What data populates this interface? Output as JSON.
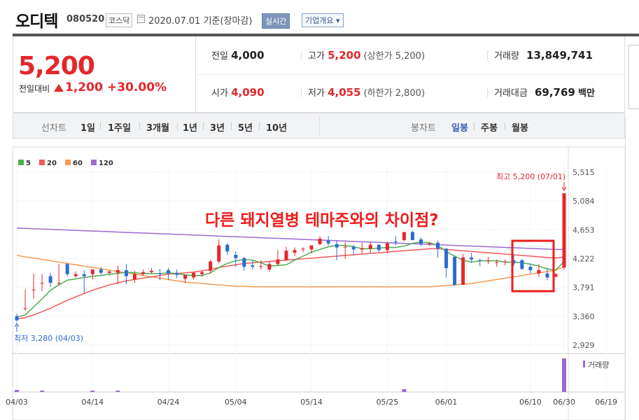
{
  "header": {
    "stock_name": "오디텍",
    "stock_code": "080520",
    "market": "코스닥",
    "date_text": "2020.07.01 기준(장마감)",
    "realtime_button": "실시간",
    "company_overview_button": "기업개요 ▾"
  },
  "summary": {
    "current_price": "5,200",
    "change_label": "전일대비",
    "change_value": "1,200",
    "change_percent": "+30.00%",
    "prev_close_label": "전일",
    "prev_close": "4,000",
    "high_label": "고가",
    "high": "5,200",
    "upper_limit": "(상한가 5,200)",
    "volume_label": "거래량",
    "volume": "13,849,741",
    "open_label": "시가",
    "open": "4,090",
    "low_label": "저가",
    "low": "4,055",
    "lower_limit": "(하한가 2,800)",
    "trade_value_label": "거래대금",
    "trade_value": "69,769",
    "trade_value_unit": "백만"
  },
  "toolbar": {
    "line_chart_label": "선차트",
    "line_periods": [
      "1일",
      "1주일",
      "3개월",
      "1년",
      "3년",
      "5년",
      "10년"
    ],
    "candle_chart_label": "봉차트",
    "candle_periods": [
      "일봉",
      "주봉",
      "월봉"
    ],
    "selected_candle_period": "일봉"
  },
  "colors": {
    "up": "#e4272b",
    "down": "#2c6ad4",
    "ma5": "#4caf50",
    "ma20": "#f0595a",
    "ma60": "#f59a4e",
    "ma120": "#9c6ad2",
    "annotation": "#ee1c1c"
  },
  "chart_data": {
    "type": "candlestick",
    "legend": [
      "5",
      "20",
      "60",
      "120"
    ],
    "y_ticks": [
      "5,515",
      "5,084",
      "4,653",
      "4,222",
      "3,791",
      "3,360",
      "2,929"
    ],
    "ylim": [
      2929,
      5515
    ],
    "x_ticks": [
      "04/03",
      "04/14",
      "04/24",
      "05/04",
      "05/14",
      "05/25",
      "06/01",
      "06/10",
      "06/19",
      "06/30"
    ],
    "high_annotation": "최고 5,200 (07/01)",
    "low_annotation": "최저 3,280 (04/03)",
    "volume_label": "거래량",
    "overlay_annotation": "다른 돼지열병 테마주와의 차이점?",
    "candles": [
      [
        3360,
        3400,
        3300,
        3280
      ],
      [
        3480,
        3760,
        3480,
        3440
      ],
      [
        3760,
        4000,
        3760,
        3620
      ],
      [
        3860,
        3990,
        3860,
        3740
      ],
      [
        3960,
        4010,
        3860,
        3800
      ],
      [
        3860,
        4140,
        3860,
        3820
      ],
      [
        4140,
        4160,
        3990,
        3960
      ],
      [
        3960,
        4030,
        3990,
        3940
      ],
      [
        3990,
        4050,
        3960,
        3700
      ],
      [
        3990,
        4050,
        4060,
        3910
      ],
      [
        4060,
        4100,
        4010,
        3980
      ],
      [
        4010,
        4050,
        4030,
        3970
      ],
      [
        4010,
        4120,
        4050,
        3840
      ],
      [
        4050,
        4140,
        3960,
        3840
      ],
      [
        3910,
        4040,
        3990,
        3860
      ],
      [
        3990,
        4060,
        4020,
        3960
      ],
      [
        4020,
        4080,
        4040,
        4000
      ],
      [
        4000,
        4070,
        3990,
        3900
      ],
      [
        4050,
        4080,
        4000,
        3900
      ],
      [
        4010,
        4060,
        3980,
        3930
      ],
      [
        3920,
        3980,
        3980,
        3860
      ],
      [
        3940,
        4020,
        4010,
        3910
      ],
      [
        3990,
        4040,
        4020,
        3950
      ],
      [
        4040,
        4200,
        4180,
        4000
      ],
      [
        4180,
        4510,
        4420,
        4150
      ],
      [
        4430,
        4450,
        4330,
        4280
      ],
      [
        4280,
        4330,
        4230,
        4100
      ],
      [
        4230,
        4250,
        4100,
        4040
      ],
      [
        4120,
        4190,
        4100,
        4060
      ],
      [
        4100,
        4200,
        4110,
        4060
      ],
      [
        4060,
        4180,
        4140,
        4030
      ],
      [
        4140,
        4350,
        4210,
        4120
      ],
      [
        4200,
        4400,
        4340,
        4190
      ],
      [
        4310,
        4390,
        4350,
        4260
      ],
      [
        4360,
        4390,
        4370,
        4320
      ],
      [
        4360,
        4420,
        4420,
        4300
      ],
      [
        4440,
        4560,
        4520,
        4420
      ],
      [
        4490,
        4560,
        4450,
        4420
      ],
      [
        4440,
        4500,
        4390,
        4200
      ],
      [
        4390,
        4470,
        4400,
        4220
      ],
      [
        4400,
        4430,
        4360,
        4270
      ],
      [
        4360,
        4460,
        4380,
        4300
      ],
      [
        4370,
        4480,
        4430,
        4310
      ],
      [
        4430,
        4440,
        4350,
        4320
      ],
      [
        4350,
        4480,
        4450,
        4300
      ],
      [
        4480,
        4560,
        4470,
        4420
      ],
      [
        4500,
        4600,
        4620,
        4480
      ],
      [
        4620,
        4640,
        4500,
        4500
      ],
      [
        4510,
        4540,
        4440,
        4410
      ],
      [
        4440,
        4460,
        4450,
        4410
      ],
      [
        4460,
        4490,
        4370,
        4240
      ],
      [
        4370,
        4380,
        4080,
        3940
      ],
      [
        4250,
        4260,
        3830,
        3810
      ],
      [
        3830,
        4290,
        4240,
        3830
      ],
      [
        4240,
        4310,
        4210,
        4160
      ],
      [
        4200,
        4220,
        4190,
        4110
      ],
      [
        4180,
        4250,
        4190,
        4140
      ],
      [
        4170,
        4210,
        4170,
        4100
      ],
      [
        4180,
        4210,
        4180,
        4120
      ],
      [
        4200,
        4290,
        4150,
        4110
      ],
      [
        4200,
        4210,
        4070,
        4050
      ],
      [
        4100,
        4150,
        4050,
        4000
      ],
      [
        4000,
        4140,
        4050,
        3950
      ],
      [
        4000,
        4080,
        3940,
        3900
      ],
      [
        3950,
        4010,
        3990,
        3950
      ],
      [
        4090,
        5200,
        5200,
        4055
      ]
    ],
    "ma5": [
      3350,
      3380,
      3500,
      3620,
      3750,
      3830,
      3900,
      3920,
      3940,
      3960,
      3970,
      3990,
      4000,
      4020,
      4010,
      4000,
      4000,
      4000,
      4010,
      4000,
      3980,
      3970,
      3970,
      4010,
      4090,
      4150,
      4190,
      4210,
      4200,
      4160,
      4110,
      4120,
      4130,
      4200,
      4260,
      4320,
      4360,
      4400,
      4420,
      4420,
      4400,
      4370,
      4370,
      4380,
      4390,
      4390,
      4410,
      4450,
      4470,
      4460,
      4420,
      4330,
      4260,
      4200,
      4170,
      4190,
      4190,
      4190,
      4170,
      4170,
      4160,
      4140,
      4110,
      4070,
      4050,
      4180
    ],
    "ma20": [
      3320,
      3340,
      3380,
      3430,
      3480,
      3540,
      3600,
      3650,
      3700,
      3750,
      3790,
      3830,
      3860,
      3890,
      3910,
      3930,
      3950,
      3970,
      3990,
      4000,
      4010,
      4020,
      4040,
      4060,
      4090,
      4110,
      4130,
      4150,
      4160,
      4170,
      4180,
      4190,
      4200,
      4210,
      4220,
      4230,
      4240,
      4250,
      4260,
      4270,
      4280,
      4290,
      4300,
      4310,
      4320,
      4330,
      4340,
      4350,
      4360,
      4370,
      4370,
      4360,
      4350,
      4340,
      4330,
      4320,
      4310,
      4300,
      4290,
      4280,
      4270,
      4260,
      4250,
      4240,
      4230,
      4250
    ],
    "ma60": [
      4270,
      4250,
      4230,
      4210,
      4190,
      4170,
      4150,
      4130,
      4110,
      4090,
      4070,
      4050,
      4030,
      4010,
      3990,
      3970,
      3950,
      3930,
      3910,
      3890,
      3870,
      3860,
      3850,
      3840,
      3830,
      3820,
      3810,
      3810,
      3800,
      3800,
      3800,
      3800,
      3800,
      3800,
      3800,
      3800,
      3800,
      3800,
      3800,
      3800,
      3800,
      3800,
      3800,
      3800,
      3800,
      3800,
      3800,
      3800,
      3800,
      3800,
      3810,
      3820,
      3830,
      3840,
      3850,
      3870,
      3890,
      3910,
      3930,
      3950,
      3970,
      3990,
      4010,
      4030,
      4050,
      4100
    ],
    "ma120": [
      4680,
      4675,
      4670,
      4665,
      4660,
      4655,
      4650,
      4645,
      4640,
      4635,
      4630,
      4625,
      4620,
      4615,
      4610,
      4605,
      4600,
      4595,
      4590,
      4585,
      4580,
      4575,
      4570,
      4565,
      4560,
      4555,
      4550,
      4545,
      4540,
      4535,
      4530,
      4525,
      4520,
      4515,
      4510,
      4505,
      4500,
      4495,
      4490,
      4485,
      4480,
      4475,
      4470,
      4465,
      4460,
      4455,
      4450,
      4445,
      4440,
      4435,
      4430,
      4425,
      4420,
      4415,
      4410,
      4405,
      4400,
      4395,
      4390,
      4385,
      4380,
      4375,
      4370,
      4365,
      4360,
      4360
    ]
  }
}
